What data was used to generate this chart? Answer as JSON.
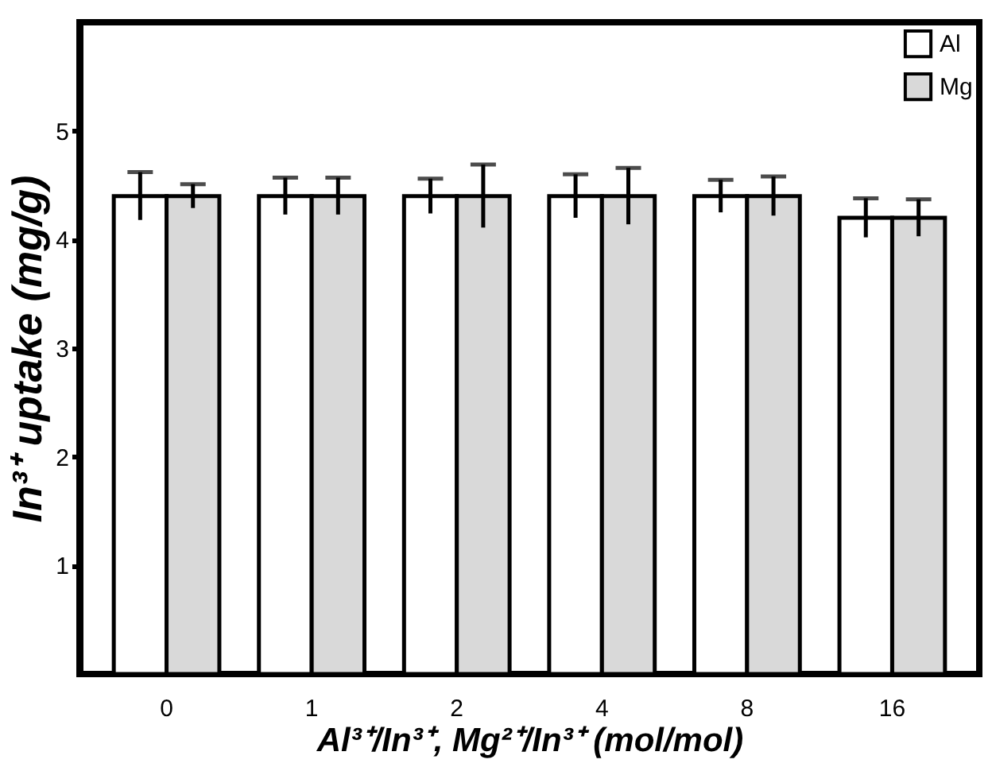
{
  "chart_data": {
    "type": "bar",
    "xlabel": "Al³⁺/In³⁺, Mg²⁺/In³⁺ (mol/mol)",
    "ylabel": "In³⁺ uptake (mg/g)",
    "categories": [
      "0",
      "1",
      "2",
      "4",
      "8",
      "16"
    ],
    "series": [
      {
        "name": "Al",
        "color": "#ffffff",
        "values": [
          4.4,
          4.4,
          4.4,
          4.4,
          4.4,
          4.2
        ],
        "errors": [
          0.22,
          0.17,
          0.16,
          0.2,
          0.15,
          0.18
        ]
      },
      {
        "name": "Mg",
        "color": "#d9d9d9",
        "values": [
          4.4,
          4.4,
          4.4,
          4.4,
          4.4,
          4.2
        ],
        "errors": [
          0.11,
          0.17,
          0.29,
          0.26,
          0.18,
          0.17
        ]
      }
    ],
    "ylim": [
      0,
      6
    ],
    "yticks": [
      1,
      2,
      3,
      4,
      5
    ],
    "grid": false,
    "legend": "top right"
  }
}
